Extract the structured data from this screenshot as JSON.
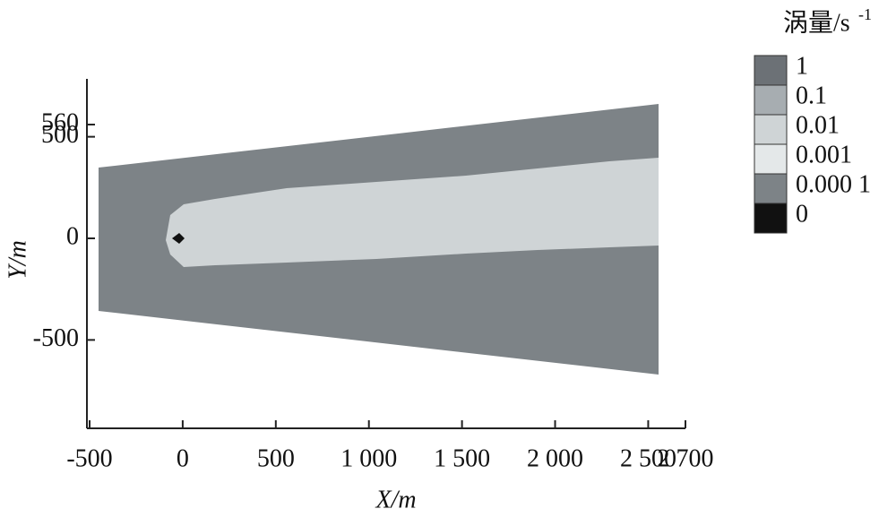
{
  "chart_data": {
    "type": "contour",
    "xlabel": "X/m",
    "ylabel": "Y/m",
    "xlim": [
      -500,
      2700
    ],
    "xticks": [
      -500,
      0,
      500,
      {
        "value": 1000,
        "label": "1 000"
      },
      {
        "value": 1500,
        "label": "1 500"
      },
      {
        "value": 2000,
        "label": "2 000"
      },
      {
        "value": 2500,
        "label": "2 500"
      },
      {
        "value": 2700,
        "label": "2 700"
      }
    ],
    "ylim": [
      -935,
      785
    ],
    "yticks": [
      -500,
      0,
      500,
      560
    ],
    "colorbar_title": "涡量/s",
    "colorbar_title_sup": "-1",
    "levels": [
      1,
      0.1,
      0.01,
      0.001,
      {
        "value": 0.0001,
        "label": "0.000 1"
      },
      0
    ],
    "colors": [
      "#6c7176",
      "#a7adb1",
      "#cfd4d6",
      "#e4e8e9",
      "#7d8387",
      "#111111"
    ]
  }
}
